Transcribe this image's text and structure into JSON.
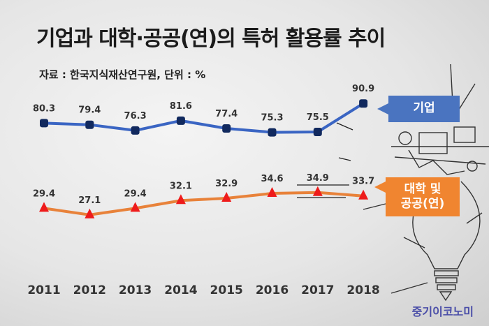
{
  "title": "기업과 대학·공공(연)의 특허 활용률 추이",
  "source": "자료 : 한국지식재산연구원, 단위 : %",
  "watermark": "중기이코노미",
  "colors": {
    "biz": "#3a65c3",
    "biz_marker": "#11295e",
    "univ": "#e8823a",
    "univ_marker": "#ee1b1b"
  },
  "chart_data": {
    "type": "line",
    "categories": [
      "2011",
      "2012",
      "2013",
      "2014",
      "2015",
      "2016",
      "2017",
      "2018"
    ],
    "series": [
      {
        "name": "기업",
        "values": [
          80.3,
          79.4,
          76.3,
          81.6,
          77.4,
          75.3,
          75.5,
          90.9
        ]
      },
      {
        "name": "대학 및 공공(연)",
        "values": [
          29.4,
          27.1,
          29.4,
          32.1,
          32.9,
          34.6,
          34.9,
          33.7
        ]
      }
    ],
    "legend": [
      "기업",
      "대학 및 공공(연)"
    ]
  }
}
